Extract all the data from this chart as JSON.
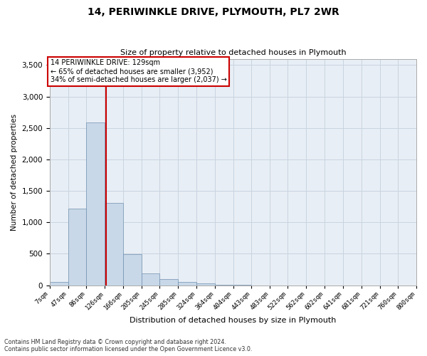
{
  "title": "14, PERIWINKLE DRIVE, PLYMOUTH, PL7 2WR",
  "subtitle": "Size of property relative to detached houses in Plymouth",
  "xlabel": "Distribution of detached houses by size in Plymouth",
  "ylabel": "Number of detached properties",
  "footnote1": "Contains HM Land Registry data © Crown copyright and database right 2024.",
  "footnote2": "Contains public sector information licensed under the Open Government Licence v3.0.",
  "annotation_line1": "14 PERIWINKLE DRIVE: 129sqm",
  "annotation_line2": "← 65% of detached houses are smaller (3,952)",
  "annotation_line3": "34% of semi-detached houses are larger (2,037) →",
  "property_size": 129,
  "bar_color": "#c8d8e8",
  "bar_edge_color": "#7090b0",
  "vline_color": "#cc0000",
  "vline_x": 129,
  "bins": [
    7,
    47,
    86,
    126,
    166,
    205,
    245,
    285,
    324,
    364,
    404,
    443,
    483,
    522,
    562,
    602,
    641,
    681,
    721,
    760,
    800
  ],
  "bar_heights": [
    50,
    1220,
    2590,
    1310,
    490,
    190,
    100,
    50,
    30,
    10,
    5,
    0,
    0,
    0,
    0,
    0,
    0,
    0,
    0,
    0
  ],
  "ylim": [
    0,
    3600
  ],
  "yticks": [
    0,
    500,
    1000,
    1500,
    2000,
    2500,
    3000,
    3500
  ],
  "background_color": "#ffffff",
  "plot_bg_color": "#e8eef5",
  "grid_color": "#c8d4e0",
  "annotation_box_color": "#ffffff",
  "annotation_box_edge": "#cc0000"
}
